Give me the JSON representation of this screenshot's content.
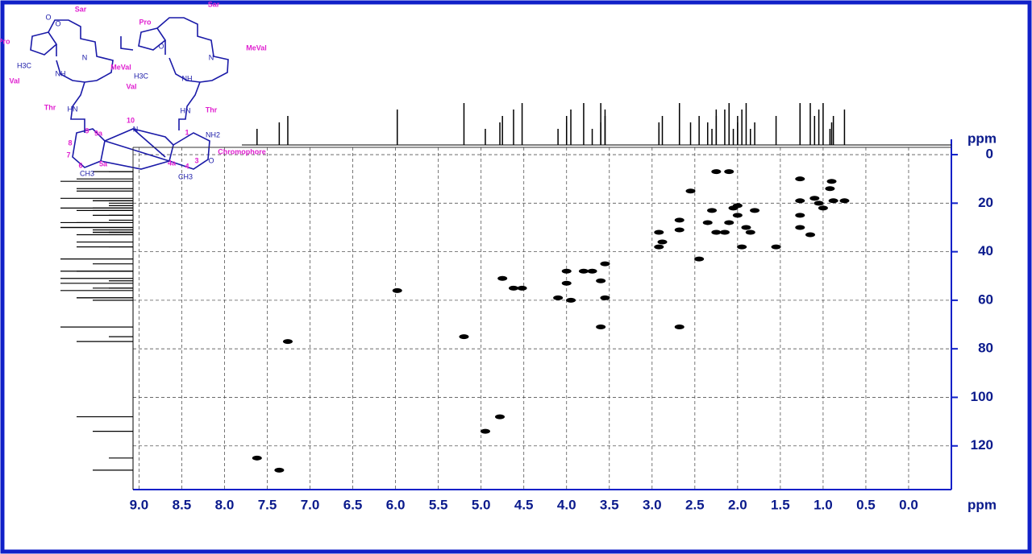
{
  "chart_data": {
    "type": "scatter",
    "x": [
      7.62,
      7.36,
      7.26,
      5.98,
      5.2,
      4.95,
      4.78,
      4.75,
      4.62,
      4.52,
      4.1,
      4.0,
      4.0,
      3.95,
      3.8,
      3.7,
      3.6,
      3.55,
      3.55,
      3.6,
      2.92,
      2.92,
      2.88,
      2.68,
      2.68,
      2.68,
      2.55,
      2.45,
      2.25,
      2.1,
      2.3,
      2.35,
      2.25,
      2.15,
      2.1,
      2.05,
      2.0,
      2.0,
      1.95,
      1.9,
      1.85,
      1.8,
      1.55,
      1.27,
      1.27,
      1.27,
      1.27,
      1.1,
      1.05,
      1.0,
      0.92,
      0.9,
      0.88,
      0.75,
      1.15
    ],
    "values": [
      125,
      130,
      77,
      56,
      75,
      114,
      108,
      51,
      55,
      55,
      59,
      53,
      48,
      60,
      48,
      48,
      52,
      45,
      59,
      71,
      38,
      32,
      36,
      71,
      27,
      31,
      15,
      43,
      7,
      7,
      23,
      28,
      32,
      32,
      28,
      22,
      21,
      25,
      38,
      30,
      32,
      23,
      38,
      30,
      25,
      19,
      10,
      18,
      20,
      22,
      14,
      11,
      19,
      19,
      33
    ],
    "color": "#000000",
    "xlabel": "ppm",
    "ylabel": "ppm",
    "xlim": [
      9.07,
      -0.5
    ],
    "ylim": [
      -3,
      138
    ],
    "xticks": [
      {
        "value": 9,
        "label": "9.0"
      },
      {
        "value": 8.5,
        "label": "8.5"
      },
      {
        "value": 8,
        "label": "8.0"
      },
      {
        "value": 7.5,
        "label": "7.5"
      },
      {
        "value": 7,
        "label": "7.0"
      },
      {
        "value": 6.5,
        "label": "6.5"
      },
      {
        "value": 6,
        "label": "6.0"
      },
      {
        "value": 5.5,
        "label": "5.5"
      },
      {
        "value": 5,
        "label": "5.0"
      },
      {
        "value": 4.5,
        "label": "4.5"
      },
      {
        "value": 4,
        "label": "4.0"
      },
      {
        "value": 3.5,
        "label": "3.5"
      },
      {
        "value": 3,
        "label": "3.0"
      },
      {
        "value": 2.5,
        "label": "2.5"
      },
      {
        "value": 2,
        "label": "2.0"
      },
      {
        "value": 1.5,
        "label": "1.5"
      },
      {
        "value": 1,
        "label": "1.0"
      },
      {
        "value": 0.5,
        "label": "0.5"
      },
      {
        "value": 0,
        "label": "0.0"
      }
    ],
    "yticks": [
      0,
      20,
      40,
      60,
      80,
      100,
      120
    ],
    "grid": true
  },
  "structure": {
    "pink_labels": [
      "Sar",
      "Pro",
      "MeVal",
      "Val",
      "Thr",
      "Pro",
      "Sar",
      "MeVal",
      "Val",
      "Thr",
      "10",
      "9",
      "9a",
      "8",
      "7",
      "6",
      "5a",
      "4a",
      "4",
      "3",
      "1",
      "Chromophore"
    ],
    "blue_labels": [
      "NH2",
      "N",
      "O",
      "O",
      "CH3",
      "CH3",
      "H3C",
      "H3C",
      "NH",
      "NH",
      "HN",
      "HN",
      "N",
      "N",
      "O",
      "O"
    ]
  }
}
